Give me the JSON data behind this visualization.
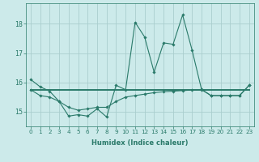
{
  "xlabel": "Humidex (Indice chaleur)",
  "x_values": [
    0,
    1,
    2,
    3,
    4,
    5,
    6,
    7,
    8,
    9,
    10,
    11,
    12,
    13,
    14,
    15,
    16,
    17,
    18,
    19,
    20,
    21,
    22,
    23
  ],
  "line1_y": [
    16.1,
    15.85,
    15.7,
    15.35,
    14.85,
    14.9,
    14.85,
    15.1,
    14.82,
    15.9,
    15.75,
    18.05,
    17.55,
    16.35,
    17.35,
    17.3,
    18.3,
    17.1,
    15.75,
    15.55,
    15.55,
    15.55,
    15.55,
    15.9
  ],
  "line2_y": [
    15.75,
    15.75,
    15.75,
    15.75,
    15.75,
    15.75,
    15.75,
    15.75,
    15.75,
    15.75,
    15.75,
    15.75,
    15.75,
    15.75,
    15.75,
    15.75,
    15.75,
    15.75,
    15.75,
    15.75,
    15.75,
    15.75,
    15.75,
    15.75
  ],
  "line3_y": [
    15.75,
    15.55,
    15.5,
    15.35,
    15.15,
    15.05,
    15.1,
    15.15,
    15.15,
    15.35,
    15.5,
    15.55,
    15.6,
    15.65,
    15.68,
    15.7,
    15.72,
    15.74,
    15.76,
    15.55,
    15.55,
    15.55,
    15.55,
    15.9
  ],
  "line_color": "#2a7a6a",
  "bg_color": "#cceaea",
  "grid_color": "#aacece",
  "ylim": [
    14.5,
    18.7
  ],
  "xlim": [
    -0.5,
    23.5
  ],
  "yticks": [
    15,
    16,
    17,
    18
  ],
  "xticks": [
    0,
    1,
    2,
    3,
    4,
    5,
    6,
    7,
    8,
    9,
    10,
    11,
    12,
    13,
    14,
    15,
    16,
    17,
    18,
    19,
    20,
    21,
    22,
    23
  ],
  "marker": "D",
  "markersize": 1.8,
  "linewidth": 0.8,
  "line2_linewidth": 1.4,
  "tick_fontsize": 5.2,
  "xlabel_fontsize": 6.0
}
